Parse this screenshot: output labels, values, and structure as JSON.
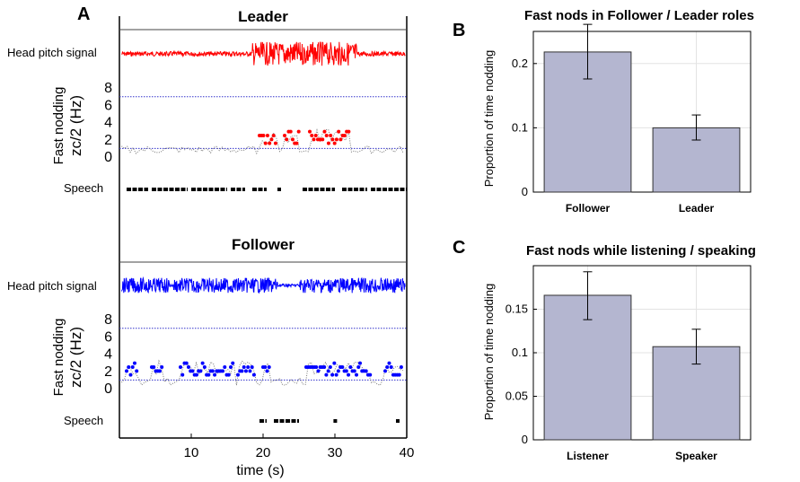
{
  "panels": {
    "A": "A",
    "B": "B",
    "C": "C"
  },
  "chart_data": [
    {
      "type": "line",
      "panel": "A",
      "titles": [
        "Leader",
        "Follower"
      ],
      "row_labels": {
        "head_pitch": "Head pitch signal",
        "fast_nodding_line1": "Fast nodding",
        "fast_nodding_line2": "zc/2 (Hz)",
        "speech": "Speech"
      },
      "xlabel": "time (s)",
      "xlim": [
        0,
        40
      ],
      "xticks": [
        "10",
        "20",
        "30",
        "40"
      ],
      "yticks_nodding": [
        "0",
        "2",
        "4",
        "6",
        "8"
      ],
      "thresholds_hz": [
        1,
        7
      ],
      "colors": {
        "leader": "#ff0000",
        "follower": "#0000ff",
        "speech": "#000000",
        "threshold": "#3333cc"
      },
      "leader": {
        "speech_intervals_s": [
          [
            1,
            4
          ],
          [
            4.5,
            9.5
          ],
          [
            10,
            15
          ],
          [
            15.5,
            17.5
          ],
          [
            18.5,
            20.5
          ],
          [
            22,
            22.5
          ],
          [
            25.5,
            30
          ],
          [
            31,
            34.5
          ],
          [
            35,
            40
          ]
        ],
        "fast_nod_intervals_s": [
          [
            19.5,
            22
          ],
          [
            23,
            25
          ],
          [
            26.5,
            28
          ],
          [
            28,
            32
          ]
        ]
      },
      "follower": {
        "speech_intervals_s": [
          [
            19.5,
            20.5
          ],
          [
            21.5,
            25
          ],
          [
            29.8,
            30.3
          ],
          [
            38.5,
            39
          ]
        ],
        "fast_nod_intervals_s": [
          [
            1,
            2.5
          ],
          [
            4.5,
            6
          ],
          [
            8.5,
            16
          ],
          [
            16.5,
            19
          ],
          [
            20,
            21
          ],
          [
            26,
            33.5
          ],
          [
            33.5,
            35
          ],
          [
            37,
            39.5
          ]
        ]
      }
    },
    {
      "type": "bar",
      "panel": "B",
      "title": "Fast nods in Follower / Leader roles",
      "ylabel": "Proportion of time nodding",
      "categories": [
        "Follower",
        "Leader"
      ],
      "values": [
        0.218,
        0.1
      ],
      "errors": [
        [
          0.176,
          0.261
        ],
        [
          0.081,
          0.12
        ]
      ],
      "ylim": [
        0,
        0.25
      ],
      "yticks": [
        "0",
        "0.1",
        "0.2"
      ],
      "yticks_values": [
        0,
        0.1,
        0.2
      ],
      "grid": true,
      "bar_color": "#b4b6d0"
    },
    {
      "type": "bar",
      "panel": "C",
      "title": "Fast nods while listening / speaking",
      "ylabel": "Proportion of time nodding",
      "categories": [
        "Listener",
        "Speaker"
      ],
      "values": [
        0.166,
        0.107
      ],
      "errors": [
        [
          0.138,
          0.193
        ],
        [
          0.087,
          0.127
        ]
      ],
      "ylim": [
        0,
        0.2
      ],
      "yticks": [
        "0",
        "0.05",
        "0.1",
        "0.15"
      ],
      "yticks_values": [
        0,
        0.05,
        0.1,
        0.15
      ],
      "grid": true,
      "bar_color": "#b4b6d0"
    }
  ]
}
